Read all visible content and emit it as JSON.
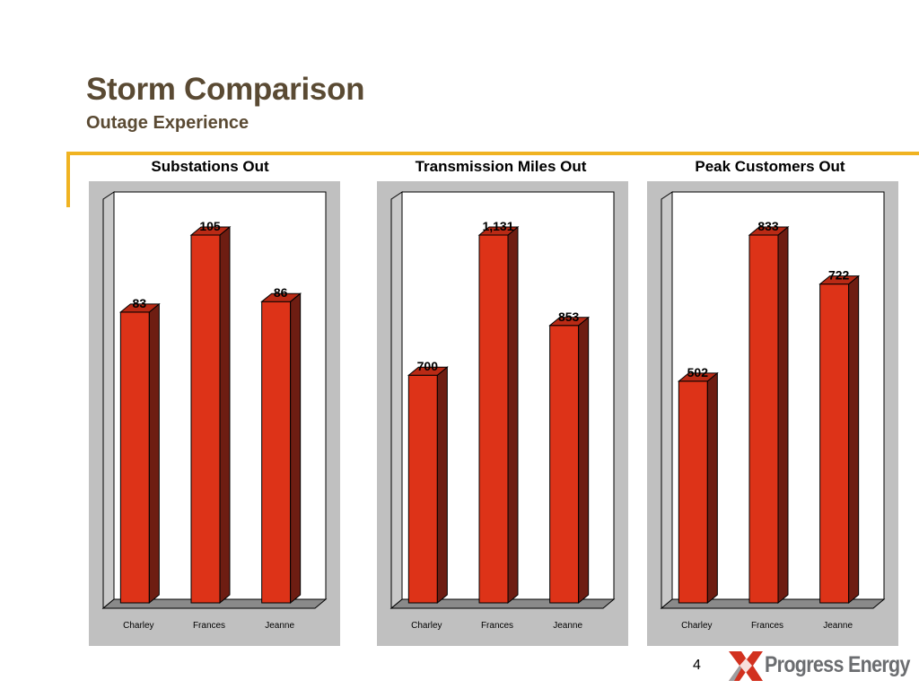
{
  "slide": {
    "title": "Storm Comparison",
    "subtitle": "Outage Experience",
    "page_number": "4",
    "logo_text": "Progress Energy"
  },
  "colors": {
    "title": "#5a4a33",
    "accent_rule": "#f0b322",
    "chart_background": "#c0c0c0",
    "bar_front": "#dd3318",
    "bar_side": "#6e1d12",
    "logo_red": "#d2311f",
    "logo_gray": "#6b6d70"
  },
  "chart_data": [
    {
      "type": "bar",
      "title": "Substations Out",
      "categories": [
        "Charley",
        "Frances",
        "Jeanne"
      ],
      "values": [
        83,
        105,
        86
      ],
      "value_labels": [
        "83",
        "105",
        "86"
      ],
      "ylim": [
        0,
        105
      ],
      "grid": false,
      "legend": false,
      "style": "3d-column"
    },
    {
      "type": "bar",
      "title": "Transmission Miles Out",
      "categories": [
        "Charley",
        "Frances",
        "Jeanne"
      ],
      "values": [
        700,
        1131,
        853
      ],
      "value_labels": [
        "700",
        "1,131",
        "853"
      ],
      "ylim": [
        0,
        1131
      ],
      "grid": false,
      "legend": false,
      "style": "3d-column"
    },
    {
      "type": "bar",
      "title": "Peak Customers Out",
      "categories": [
        "Charley",
        "Frances",
        "Jeanne"
      ],
      "values": [
        502,
        833,
        722
      ],
      "value_labels": [
        "502",
        "833",
        "722"
      ],
      "ylim": [
        0,
        833
      ],
      "grid": false,
      "legend": false,
      "style": "3d-column"
    }
  ]
}
